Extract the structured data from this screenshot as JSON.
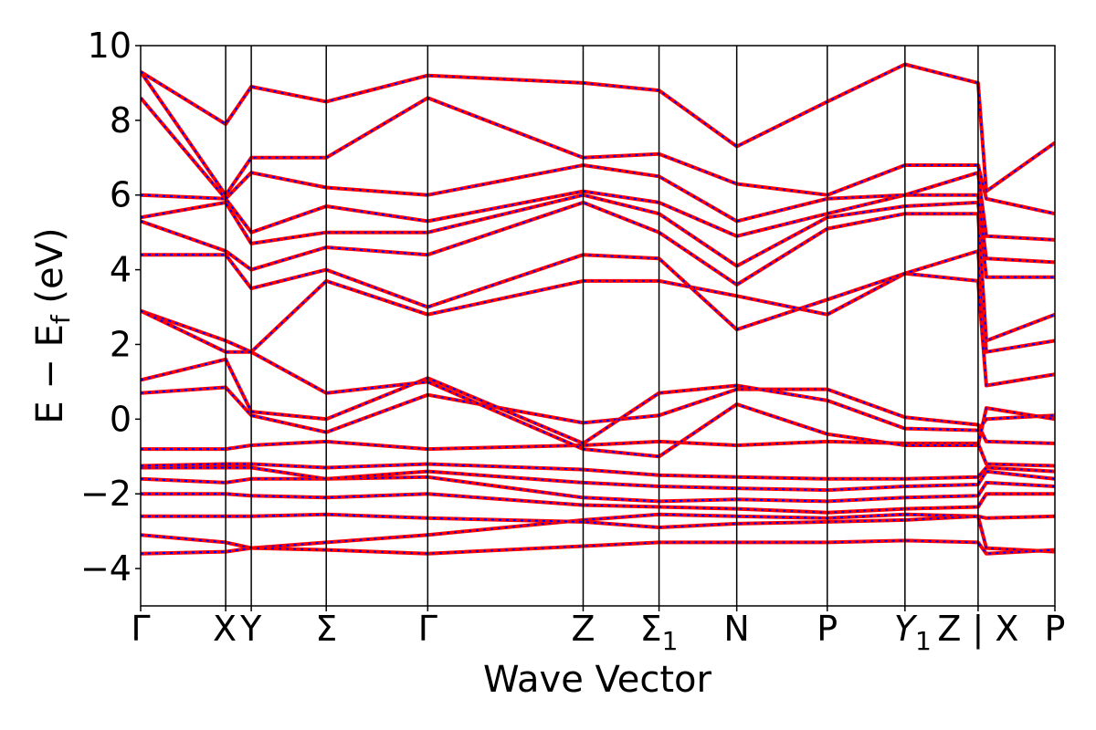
{
  "chart_data": {
    "type": "line",
    "title": "",
    "xlabel": "Wave Vector",
    "ylabel": "E − E_f (eV)",
    "ylabel_parts": {
      "main": "E − E",
      "sub": "f",
      "unit": "(eV)"
    },
    "ylim": [
      -5,
      10
    ],
    "y_ticks": [
      -4,
      -2,
      0,
      2,
      4,
      6,
      8,
      10
    ],
    "y_tick_labels": [
      "−4",
      "−2",
      "0",
      "2",
      "4",
      "6",
      "8",
      "10"
    ],
    "x_domain": [
      0,
      1
    ],
    "high_symmetry_points": [
      {
        "x": 0.0,
        "label": "Γ"
      },
      {
        "x": 0.093,
        "label": "X"
      },
      {
        "x": 0.121,
        "label": "Y"
      },
      {
        "x": 0.203,
        "label": "Σ"
      },
      {
        "x": 0.314,
        "label": "Γ"
      },
      {
        "x": 0.484,
        "label": "Z"
      },
      {
        "x": 0.567,
        "label": "Σ",
        "sub": "1"
      },
      {
        "x": 0.652,
        "label": "N"
      },
      {
        "x": 0.751,
        "label": "P"
      },
      {
        "x": 0.836,
        "label": "Y",
        "sub": "1"
      },
      {
        "x": 0.916,
        "label": "Z | X"
      },
      {
        "x": 1.0,
        "label": "P"
      }
    ],
    "grid": false,
    "series": [
      {
        "color": "#ff0000",
        "style": "solid",
        "width": 4
      },
      {
        "color": "#0000ff",
        "style": "dotted",
        "width": 2
      }
    ],
    "bands": [
      [
        [
          0.0,
          -3.6
        ],
        [
          0.093,
          -3.55
        ],
        [
          0.121,
          -3.45
        ],
        [
          0.203,
          -3.3
        ],
        [
          0.314,
          -3.1
        ],
        [
          0.484,
          -2.7
        ],
        [
          0.567,
          -2.55
        ],
        [
          0.652,
          -2.6
        ],
        [
          0.751,
          -2.65
        ],
        [
          0.836,
          -2.55
        ],
        [
          0.916,
          -2.6
        ],
        [
          0.925,
          -3.45
        ],
        [
          1.0,
          -3.55
        ]
      ],
      [
        [
          0.0,
          -3.1
        ],
        [
          0.093,
          -3.3
        ],
        [
          0.121,
          -3.45
        ],
        [
          0.203,
          -3.5
        ],
        [
          0.314,
          -3.6
        ],
        [
          0.484,
          -3.4
        ],
        [
          0.567,
          -3.3
        ],
        [
          0.652,
          -3.3
        ],
        [
          0.751,
          -3.3
        ],
        [
          0.836,
          -3.25
        ],
        [
          0.916,
          -3.3
        ],
        [
          0.925,
          -3.6
        ],
        [
          1.0,
          -3.5
        ]
      ],
      [
        [
          0.0,
          -2.6
        ],
        [
          0.093,
          -2.6
        ],
        [
          0.121,
          -2.6
        ],
        [
          0.203,
          -2.55
        ],
        [
          0.314,
          -2.65
        ],
        [
          0.484,
          -2.75
        ],
        [
          0.567,
          -2.9
        ],
        [
          0.652,
          -2.8
        ],
        [
          0.751,
          -2.75
        ],
        [
          0.836,
          -2.7
        ],
        [
          0.916,
          -2.6
        ],
        [
          0.925,
          -2.65
        ],
        [
          1.0,
          -2.6
        ]
      ],
      [
        [
          0.0,
          -2.0
        ],
        [
          0.093,
          -2.0
        ],
        [
          0.121,
          -2.05
        ],
        [
          0.203,
          -2.1
        ],
        [
          0.314,
          -2.0
        ],
        [
          0.484,
          -2.3
        ],
        [
          0.567,
          -2.35
        ],
        [
          0.652,
          -2.4
        ],
        [
          0.751,
          -2.5
        ],
        [
          0.836,
          -2.4
        ],
        [
          0.916,
          -2.35
        ],
        [
          0.925,
          -2.0
        ],
        [
          1.0,
          -2.0
        ]
      ],
      [
        [
          0.0,
          -1.6
        ],
        [
          0.093,
          -1.7
        ],
        [
          0.121,
          -1.6
        ],
        [
          0.203,
          -1.6
        ],
        [
          0.314,
          -1.55
        ],
        [
          0.484,
          -2.1
        ],
        [
          0.567,
          -2.2
        ],
        [
          0.652,
          -2.15
        ],
        [
          0.751,
          -2.2
        ],
        [
          0.836,
          -2.1
        ],
        [
          0.916,
          -2.05
        ],
        [
          0.925,
          -1.7
        ],
        [
          1.0,
          -1.8
        ]
      ],
      [
        [
          0.0,
          -1.3
        ],
        [
          0.093,
          -1.3
        ],
        [
          0.121,
          -1.3
        ],
        [
          0.203,
          -1.6
        ],
        [
          0.314,
          -1.4
        ],
        [
          0.484,
          -1.7
        ],
        [
          0.567,
          -1.8
        ],
        [
          0.652,
          -1.85
        ],
        [
          0.751,
          -1.9
        ],
        [
          0.836,
          -1.8
        ],
        [
          0.916,
          -1.75
        ],
        [
          0.925,
          -1.4
        ],
        [
          1.0,
          -1.6
        ]
      ],
      [
        [
          0.0,
          -1.25
        ],
        [
          0.093,
          -1.2
        ],
        [
          0.121,
          -1.2
        ],
        [
          0.203,
          -1.3
        ],
        [
          0.314,
          -1.2
        ],
        [
          0.484,
          -1.35
        ],
        [
          0.567,
          -1.5
        ],
        [
          0.652,
          -1.55
        ],
        [
          0.751,
          -1.6
        ],
        [
          0.836,
          -1.6
        ],
        [
          0.916,
          -1.55
        ],
        [
          0.925,
          -1.3
        ],
        [
          1.0,
          -1.4
        ]
      ],
      [
        [
          0.0,
          -0.8
        ],
        [
          0.093,
          -0.8
        ],
        [
          0.121,
          -0.7
        ],
        [
          0.203,
          -0.6
        ],
        [
          0.314,
          -0.8
        ],
        [
          0.484,
          -0.7
        ],
        [
          0.567,
          -0.6
        ],
        [
          0.652,
          -0.7
        ],
        [
          0.751,
          -0.6
        ],
        [
          0.836,
          -0.65
        ],
        [
          0.916,
          -0.65
        ],
        [
          0.925,
          -1.2
        ],
        [
          1.0,
          -1.25
        ]
      ],
      [
        [
          0.0,
          0.7
        ],
        [
          0.093,
          0.85
        ],
        [
          0.121,
          0.1
        ],
        [
          0.203,
          -0.35
        ],
        [
          0.314,
          0.65
        ],
        [
          0.484,
          -0.1
        ],
        [
          0.567,
          0.1
        ],
        [
          0.652,
          0.8
        ],
        [
          0.751,
          0.8
        ],
        [
          0.836,
          0.05
        ],
        [
          0.916,
          -0.15
        ],
        [
          0.925,
          -0.6
        ],
        [
          1.0,
          -0.65
        ]
      ],
      [
        [
          0.0,
          1.05
        ],
        [
          0.093,
          1.6
        ],
        [
          0.121,
          0.2
        ],
        [
          0.203,
          0.0
        ],
        [
          0.314,
          1.1
        ],
        [
          0.484,
          -0.65
        ],
        [
          0.567,
          0.7
        ],
        [
          0.652,
          0.9
        ],
        [
          0.751,
          0.5
        ],
        [
          0.836,
          -0.25
        ],
        [
          0.916,
          -0.3
        ],
        [
          0.925,
          0.0
        ],
        [
          1.0,
          0.1
        ]
      ],
      [
        [
          0.0,
          2.9
        ],
        [
          0.093,
          2.1
        ],
        [
          0.121,
          1.8
        ],
        [
          0.203,
          0.7
        ],
        [
          0.314,
          1.0
        ],
        [
          0.484,
          -0.8
        ],
        [
          0.567,
          -1.0
        ],
        [
          0.652,
          0.4
        ],
        [
          0.751,
          -0.4
        ],
        [
          0.836,
          -0.7
        ],
        [
          0.916,
          -0.7
        ],
        [
          0.925,
          0.3
        ],
        [
          1.0,
          0.0
        ]
      ],
      [
        [
          0.0,
          2.9
        ],
        [
          0.093,
          1.8
        ],
        [
          0.121,
          1.8
        ],
        [
          0.203,
          3.7
        ],
        [
          0.314,
          2.8
        ],
        [
          0.484,
          3.7
        ],
        [
          0.567,
          3.7
        ],
        [
          0.652,
          3.3
        ],
        [
          0.751,
          2.8
        ],
        [
          0.836,
          3.9
        ],
        [
          0.916,
          3.7
        ],
        [
          0.925,
          0.9
        ],
        [
          1.0,
          1.2
        ]
      ],
      [
        [
          0.0,
          4.4
        ],
        [
          0.093,
          4.4
        ],
        [
          0.121,
          3.5
        ],
        [
          0.203,
          4.0
        ],
        [
          0.314,
          3.0
        ],
        [
          0.484,
          4.4
        ],
        [
          0.567,
          4.3
        ],
        [
          0.652,
          2.4
        ],
        [
          0.751,
          3.2
        ],
        [
          0.836,
          3.9
        ],
        [
          0.916,
          4.5
        ],
        [
          0.925,
          1.8
        ],
        [
          1.0,
          2.1
        ]
      ],
      [
        [
          0.0,
          5.3
        ],
        [
          0.093,
          4.5
        ],
        [
          0.121,
          4.0
        ],
        [
          0.203,
          4.6
        ],
        [
          0.314,
          4.4
        ],
        [
          0.484,
          5.8
        ],
        [
          0.567,
          5.0
        ],
        [
          0.652,
          3.6
        ],
        [
          0.751,
          5.1
        ],
        [
          0.836,
          5.5
        ],
        [
          0.916,
          5.5
        ],
        [
          0.925,
          2.1
        ],
        [
          1.0,
          2.8
        ]
      ],
      [
        [
          0.0,
          5.4
        ],
        [
          0.093,
          5.8
        ],
        [
          0.121,
          4.7
        ],
        [
          0.203,
          5.0
        ],
        [
          0.314,
          5.0
        ],
        [
          0.484,
          6.0
        ],
        [
          0.567,
          5.5
        ],
        [
          0.652,
          4.1
        ],
        [
          0.751,
          5.4
        ],
        [
          0.836,
          5.7
        ],
        [
          0.916,
          5.8
        ],
        [
          0.925,
          3.8
        ],
        [
          1.0,
          3.8
        ]
      ],
      [
        [
          0.0,
          6.0
        ],
        [
          0.093,
          5.9
        ],
        [
          0.121,
          5.0
        ],
        [
          0.203,
          5.7
        ],
        [
          0.314,
          5.3
        ],
        [
          0.484,
          6.1
        ],
        [
          0.567,
          5.8
        ],
        [
          0.652,
          4.9
        ],
        [
          0.751,
          5.5
        ],
        [
          0.836,
          6.0
        ],
        [
          0.916,
          6.0
        ],
        [
          0.925,
          4.3
        ],
        [
          1.0,
          4.2
        ]
      ],
      [
        [
          0.0,
          8.6
        ],
        [
          0.093,
          5.9
        ],
        [
          0.121,
          6.6
        ],
        [
          0.203,
          6.2
        ],
        [
          0.314,
          6.0
        ],
        [
          0.484,
          6.8
        ],
        [
          0.567,
          6.5
        ],
        [
          0.652,
          5.3
        ],
        [
          0.751,
          5.9
        ],
        [
          0.836,
          6.0
        ],
        [
          0.916,
          6.6
        ],
        [
          0.925,
          4.9
        ],
        [
          1.0,
          4.8
        ]
      ],
      [
        [
          0.0,
          9.3
        ],
        [
          0.093,
          6.0
        ],
        [
          0.121,
          7.0
        ],
        [
          0.203,
          7.0
        ],
        [
          0.314,
          8.6
        ],
        [
          0.484,
          7.0
        ],
        [
          0.567,
          7.1
        ],
        [
          0.652,
          6.3
        ],
        [
          0.751,
          6.0
        ],
        [
          0.836,
          6.8
        ],
        [
          0.916,
          6.8
        ],
        [
          0.925,
          5.9
        ],
        [
          1.0,
          5.5
        ]
      ],
      [
        [
          0.0,
          9.3
        ],
        [
          0.093,
          7.9
        ],
        [
          0.121,
          8.9
        ],
        [
          0.203,
          8.5
        ],
        [
          0.314,
          9.2
        ],
        [
          0.484,
          9.0
        ],
        [
          0.567,
          8.8
        ],
        [
          0.652,
          7.3
        ],
        [
          0.751,
          8.5
        ],
        [
          0.836,
          9.5
        ],
        [
          0.916,
          9.0
        ],
        [
          0.925,
          6.1
        ],
        [
          1.0,
          7.4
        ]
      ]
    ]
  }
}
